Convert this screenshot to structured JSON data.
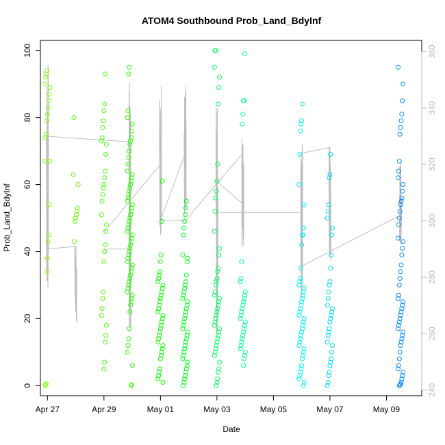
{
  "chart_data": {
    "type": "scatter",
    "title": "ATOM4 Southbound Prob_Land_BdyInf",
    "xlabel": "Date",
    "ylabel": "Prob_Land_BdyInf",
    "xlim": [
      "2012-04-26T18:00",
      "2012-05-10T06:00"
    ],
    "ylim": [
      -3,
      103
    ],
    "x_ticks": [
      {
        "date": "2012-04-27",
        "label": "Apr 27"
      },
      {
        "date": "2012-04-29",
        "label": "Apr 29"
      },
      {
        "date": "2012-05-01",
        "label": "May 01"
      },
      {
        "date": "2012-05-03",
        "label": "May 03"
      },
      {
        "date": "2012-05-05",
        "label": "May 05"
      },
      {
        "date": "2012-05-07",
        "label": "May 07"
      },
      {
        "date": "2012-05-09",
        "label": "May 09"
      }
    ],
    "y_ticks": [
      0,
      20,
      40,
      60,
      80,
      100
    ],
    "y2_lim": [
      238,
      364
    ],
    "y2_ticks": [
      240,
      260,
      280,
      300,
      320,
      340,
      360
    ],
    "grid": false,
    "legend": "none",
    "point_color_gradient": [
      "#80ff00",
      "#00ff00",
      "#00ffff",
      "#0080ff"
    ],
    "line_color": "#bebebe",
    "point_clusters": [
      {
        "date": "2012-04-27T00:00",
        "values": [
          0,
          0.3,
          0.6,
          34,
          38,
          43,
          45,
          54,
          67,
          67,
          74,
          75,
          79,
          81,
          83,
          85,
          87,
          89,
          90,
          92,
          93,
          94
        ]
      },
      {
        "date": "2012-04-28T00:00",
        "values": [
          43,
          49,
          50,
          51,
          52,
          53,
          60,
          63,
          80
        ]
      },
      {
        "date": "2012-04-29T00:00",
        "values": [
          5,
          7,
          13,
          15,
          18,
          21,
          23,
          26,
          28,
          37,
          40,
          42,
          46,
          48,
          51,
          55,
          57,
          59,
          60,
          62,
          64,
          69,
          72,
          73,
          74,
          77,
          79,
          82,
          84,
          93
        ]
      },
      {
        "date": "2012-04-29T22:00",
        "values": [
          0,
          0.3,
          6,
          10,
          12,
          14,
          17,
          22,
          24,
          25,
          26,
          27,
          28,
          29,
          30,
          31,
          32,
          33,
          34,
          35,
          36,
          37,
          38,
          39,
          40,
          41,
          42,
          43,
          44,
          45,
          46,
          47,
          48,
          49,
          50,
          51,
          52,
          53,
          54,
          55,
          56,
          57,
          58,
          59,
          60,
          61,
          62,
          63,
          64,
          66,
          68,
          70,
          72,
          73,
          74,
          76,
          78,
          80,
          82,
          93,
          95
        ]
      },
      {
        "date": "2012-05-01T00:00",
        "values": [
          1,
          2,
          3,
          4,
          5,
          8,
          9,
          10,
          11,
          12,
          13,
          14,
          15,
          16,
          17,
          18,
          19,
          20,
          21,
          22,
          23,
          24,
          25,
          26,
          27,
          28,
          29,
          30,
          31,
          32,
          33,
          34,
          37,
          39,
          49,
          61
        ]
      },
      {
        "date": "2012-05-01T21:00",
        "values": [
          0,
          1,
          2,
          3,
          4,
          5,
          6,
          7,
          8,
          9,
          10,
          11,
          12,
          13,
          14,
          15,
          16,
          17,
          18,
          19,
          20,
          21,
          22,
          23,
          24,
          25,
          26,
          27,
          28,
          29,
          30,
          31,
          33,
          37,
          38,
          39,
          45,
          47,
          49,
          51,
          53,
          55
        ]
      },
      {
        "date": "2012-05-03T00:00",
        "values": [
          0,
          1,
          2,
          4,
          5,
          7,
          9,
          10,
          11,
          12,
          13,
          14,
          15,
          16,
          17,
          18,
          19,
          20,
          21,
          22,
          23,
          24,
          25,
          26,
          27,
          28,
          30,
          31,
          32,
          34,
          35,
          39,
          41,
          46,
          52,
          56,
          58,
          61,
          66,
          84,
          89,
          92,
          95,
          100,
          100
        ]
      },
      {
        "date": "2012-05-03T22:00",
        "values": [
          6,
          8,
          9,
          10,
          11,
          12,
          13,
          14,
          15,
          16,
          17,
          18,
          19,
          20,
          21,
          22,
          23,
          24,
          25,
          26,
          27,
          28,
          31,
          32,
          37,
          78,
          81,
          85,
          85,
          99
        ]
      },
      {
        "date": "2012-05-06T00:00",
        "values": [
          0,
          1,
          2,
          3,
          4,
          5,
          6,
          8,
          9,
          10,
          11,
          12,
          13,
          14,
          15,
          16,
          17,
          18,
          19,
          20,
          21,
          22,
          23,
          24,
          25,
          26,
          27,
          28,
          29,
          30,
          31,
          32,
          35,
          42,
          45,
          45,
          47,
          54,
          60,
          69,
          76,
          78,
          79,
          84
        ]
      },
      {
        "date": "2012-05-07T00:00",
        "values": [
          0,
          1,
          3,
          4,
          6,
          7,
          8,
          10,
          12,
          13,
          15,
          16,
          17,
          19,
          20,
          21,
          22,
          23,
          24,
          26,
          28,
          30,
          31,
          35,
          39,
          45,
          47,
          50,
          52,
          54,
          62,
          63,
          69
        ]
      },
      {
        "date": "2012-05-09T12:00",
        "values": [
          0,
          0.2,
          0.5,
          1,
          2,
          3,
          4,
          5,
          6,
          8,
          10,
          12,
          13,
          14,
          15,
          16,
          17,
          18,
          19,
          20,
          21,
          22,
          23,
          24,
          25,
          26,
          27,
          30,
          32,
          34,
          36,
          39,
          41,
          43,
          44,
          48,
          50,
          52,
          54,
          55,
          56,
          58,
          60,
          62,
          64,
          67,
          75,
          77,
          79,
          81,
          85,
          90,
          95
        ]
      }
    ],
    "line_series": {
      "name": "",
      "axis": "right",
      "segments": [
        {
          "date": "2012-04-27T00:00",
          "min": 272,
          "max": 358,
          "start": 330,
          "end": 330
        },
        {
          "date": "2012-04-27T00:00",
          "min": 289,
          "max": 292,
          "start": 290,
          "end": 291
        },
        {
          "date": "2012-04-28T00:00",
          "min": 264,
          "max": 292,
          "start": 291,
          "end": 264
        },
        {
          "date": "2012-04-29T22:00",
          "min": 260,
          "max": 350,
          "start": 328,
          "end": 300
        },
        {
          "date": "2012-05-01T00:00",
          "min": 295,
          "max": 352,
          "start": 323,
          "end": 300
        },
        {
          "date": "2012-05-01T21:00",
          "min": 299,
          "max": 350,
          "start": 324,
          "end": 304
        },
        {
          "date": "2012-05-03T00:00",
          "min": 254,
          "max": 341,
          "start": 323,
          "end": 307
        },
        {
          "date": "2012-05-03T22:00",
          "min": 290,
          "max": 331,
          "start": 321,
          "end": 305
        },
        {
          "date": "2012-05-06T00:00",
          "min": 271,
          "max": 330,
          "start": 302,
          "end": 323
        },
        {
          "date": "2012-05-07T00:00",
          "min": 282,
          "max": 328,
          "start": 318,
          "end": 286
        },
        {
          "date": "2012-05-09T12:00",
          "min": 290,
          "max": 322,
          "start": 302,
          "end": 302
        }
      ],
      "connectors": [
        {
          "from_date": "2012-04-27T00:00",
          "from": 330,
          "to_date": "2012-04-29T22:00",
          "to": 328
        },
        {
          "from_date": "2012-04-27T00:00",
          "from": 290,
          "to_date": "2012-04-28T00:00",
          "to": 291
        },
        {
          "from_date": "2012-04-29T00:00",
          "from": 296,
          "to_date": "2012-05-01T00:00",
          "to": 320
        },
        {
          "from_date": "2012-04-29T00:00",
          "from": 290,
          "to_date": "2012-04-29T22:00",
          "to": 290
        },
        {
          "from_date": "2012-05-01T00:00",
          "from": 300,
          "to_date": "2012-05-01T21:00",
          "to": 324
        },
        {
          "from_date": "2012-05-01T00:00",
          "from": 300,
          "to_date": "2012-05-01T21:00",
          "to": 300
        },
        {
          "from_date": "2012-05-01T21:00",
          "from": 300,
          "to_date": "2012-05-03T22:00",
          "to": 324
        },
        {
          "from_date": "2012-05-03T00:00",
          "from": 314,
          "to_date": "2012-05-03T22:00",
          "to": 306
        },
        {
          "from_date": "2012-05-03T00:00",
          "from": 303,
          "to_date": "2012-05-06T00:00",
          "to": 303
        },
        {
          "from_date": "2012-05-06T00:00",
          "from": 324,
          "to_date": "2012-05-07T00:00",
          "to": 326
        },
        {
          "from_date": "2012-05-06T00:00",
          "from": 284,
          "to_date": "2012-05-09T12:00",
          "to": 302
        }
      ]
    }
  }
}
